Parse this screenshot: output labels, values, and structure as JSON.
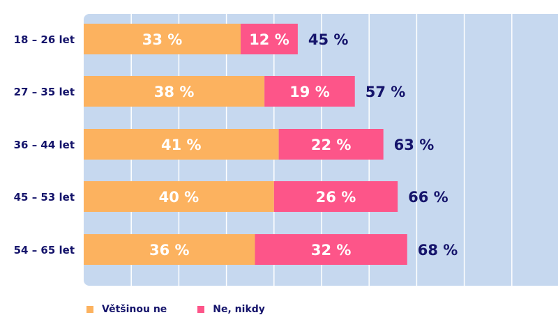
{
  "chart_data": {
    "type": "bar",
    "orientation": "horizontal",
    "stacked": true,
    "categories": [
      "18 – 26 let",
      "27 – 35 let",
      "36 – 44 let",
      "45 – 53 let",
      "54 – 65 let"
    ],
    "series": [
      {
        "name": "Většinou ne",
        "values": [
          33,
          38,
          41,
          40,
          36
        ],
        "labels": [
          "33 %",
          "38 %",
          "41 %",
          "40 %",
          "36 %"
        ],
        "color": "#fcb25f"
      },
      {
        "name": "Ne, nikdy",
        "values": [
          12,
          19,
          22,
          26,
          32
        ],
        "labels": [
          "12 %",
          "19 %",
          "22 %",
          "26 %",
          "32 %"
        ],
        "color": "#fd5589"
      }
    ],
    "totals": [
      "45 %",
      "57 %",
      "63 %",
      "66 %",
      "68 %"
    ],
    "total_values": [
      45,
      57,
      63,
      66,
      68
    ],
    "xlim": [
      0,
      100
    ],
    "grid": true,
    "legend": "bottom-left",
    "background_color": "#c6d8ef",
    "text_color": "#15146b"
  }
}
